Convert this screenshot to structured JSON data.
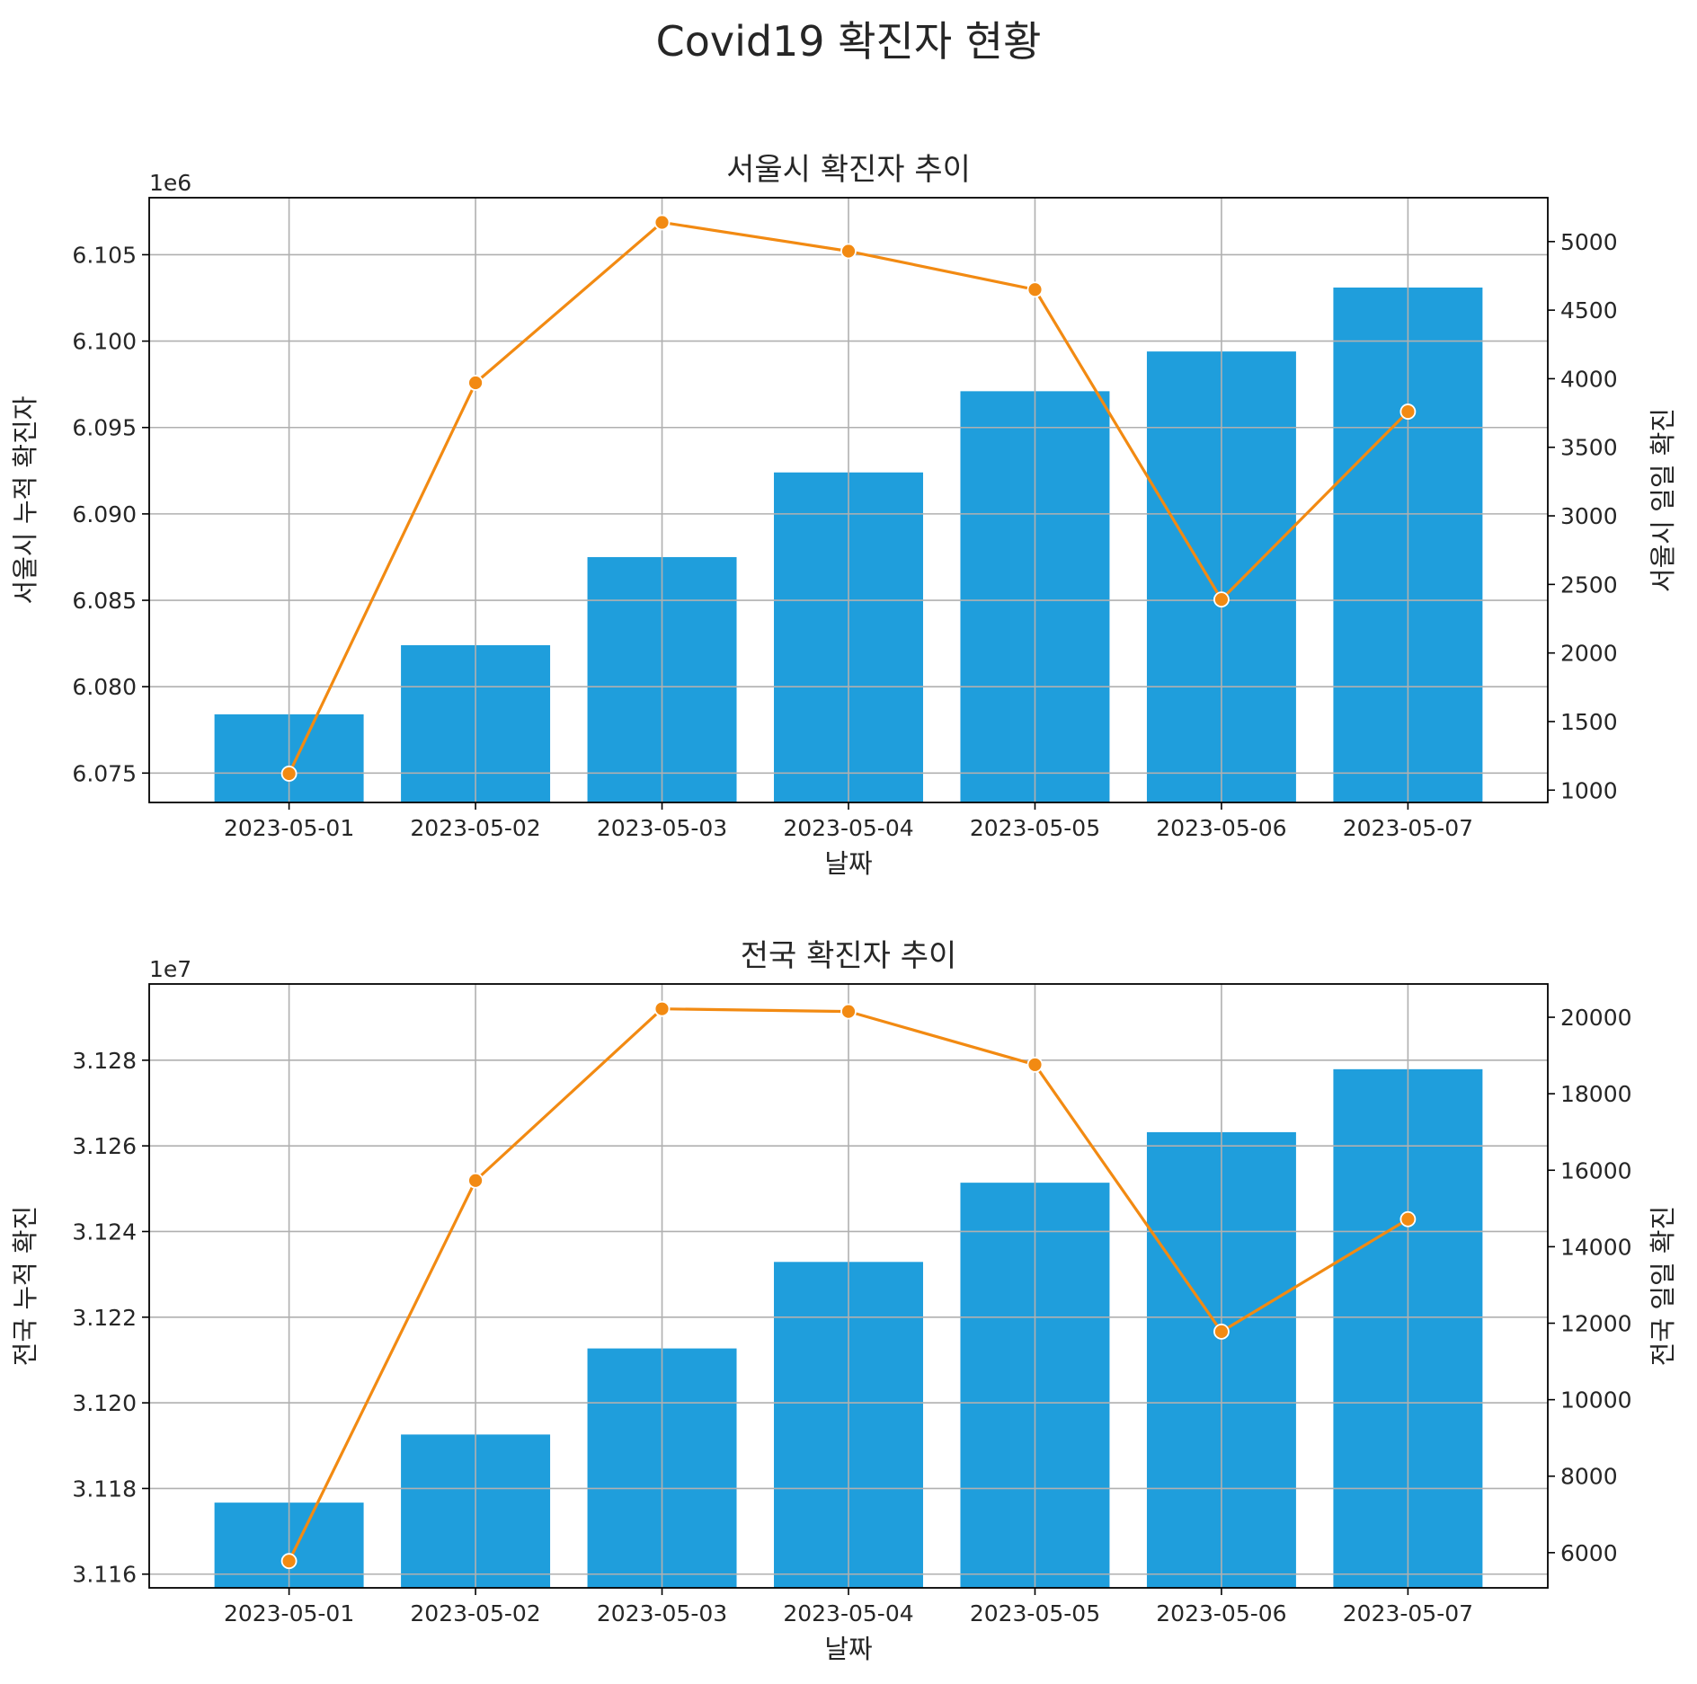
{
  "suptitle": "Covid19 확진자 현황",
  "colors": {
    "suptitle": "#118011",
    "bar": "#1f9edc",
    "line": "#f28a12",
    "grid": "#b0b0b0",
    "axis": "#000000"
  },
  "chart_data": [
    {
      "type": "bar+line",
      "title": "서울시 확진자 추이",
      "xlabel": "날짜",
      "ylabel_left": "서울시 누적 확진자",
      "ylabel_right": "서울시 일일 확진",
      "left_offset_label": "1e6",
      "left_scale": 1000000,
      "categories": [
        "2023-05-01",
        "2023-05-02",
        "2023-05-03",
        "2023-05-04",
        "2023-05-05",
        "2023-05-06",
        "2023-05-07"
      ],
      "bars": {
        "name": "서울시 누적 확진자",
        "values": [
          6078400,
          6082400,
          6087500,
          6092400,
          6097100,
          6099400,
          6103100
        ]
      },
      "line": {
        "name": "서울시 일일 확진",
        "values": [
          1120,
          3970,
          5140,
          4930,
          4650,
          2390,
          3760
        ]
      },
      "ylim_left": [
        6073300,
        6108300
      ],
      "ylim_right": [
        910,
        5320
      ],
      "yticks_left": [
        6.075,
        6.08,
        6.085,
        6.09,
        6.095,
        6.1,
        6.105
      ],
      "yticks_left_labels": [
        "6.075",
        "6.080",
        "6.085",
        "6.090",
        "6.095",
        "6.100",
        "6.105"
      ],
      "yticks_right": [
        1000,
        1500,
        2000,
        2500,
        3000,
        3500,
        4000,
        4500,
        5000
      ],
      "yticks_right_labels": [
        "1000",
        "1500",
        "2000",
        "2500",
        "3000",
        "3500",
        "4000",
        "4500",
        "5000"
      ],
      "grid": true
    },
    {
      "type": "bar+line",
      "title": "전국 확진자 추이",
      "xlabel": "날짜",
      "ylabel_left": "전국 누적 확진",
      "ylabel_right": "전국 일일 확진",
      "left_offset_label": "1e7",
      "left_scale": 10000000,
      "categories": [
        "2023-05-01",
        "2023-05-02",
        "2023-05-03",
        "2023-05-04",
        "2023-05-05",
        "2023-05-06",
        "2023-05-07"
      ],
      "bars": {
        "name": "전국 누적 확진",
        "values": [
          31176700,
          31192600,
          31212700,
          31232900,
          31251400,
          31263200,
          31277900
        ]
      },
      "line": {
        "name": "전국 일일 확진",
        "values": [
          5780,
          15730,
          20220,
          20150,
          18760,
          11780,
          14720
        ]
      },
      "ylim_left": [
        31156800,
        31297800
      ],
      "ylim_right": [
        5080,
        20870
      ],
      "yticks_left": [
        3.116,
        3.118,
        3.12,
        3.122,
        3.124,
        3.126,
        3.128
      ],
      "yticks_left_labels": [
        "3.116",
        "3.118",
        "3.120",
        "3.122",
        "3.124",
        "3.126",
        "3.128"
      ],
      "yticks_right": [
        6000,
        8000,
        10000,
        12000,
        14000,
        16000,
        18000,
        20000
      ],
      "yticks_right_labels": [
        "6000",
        "8000",
        "10000",
        "12000",
        "14000",
        "16000",
        "18000",
        "20000"
      ],
      "grid": true
    }
  ]
}
